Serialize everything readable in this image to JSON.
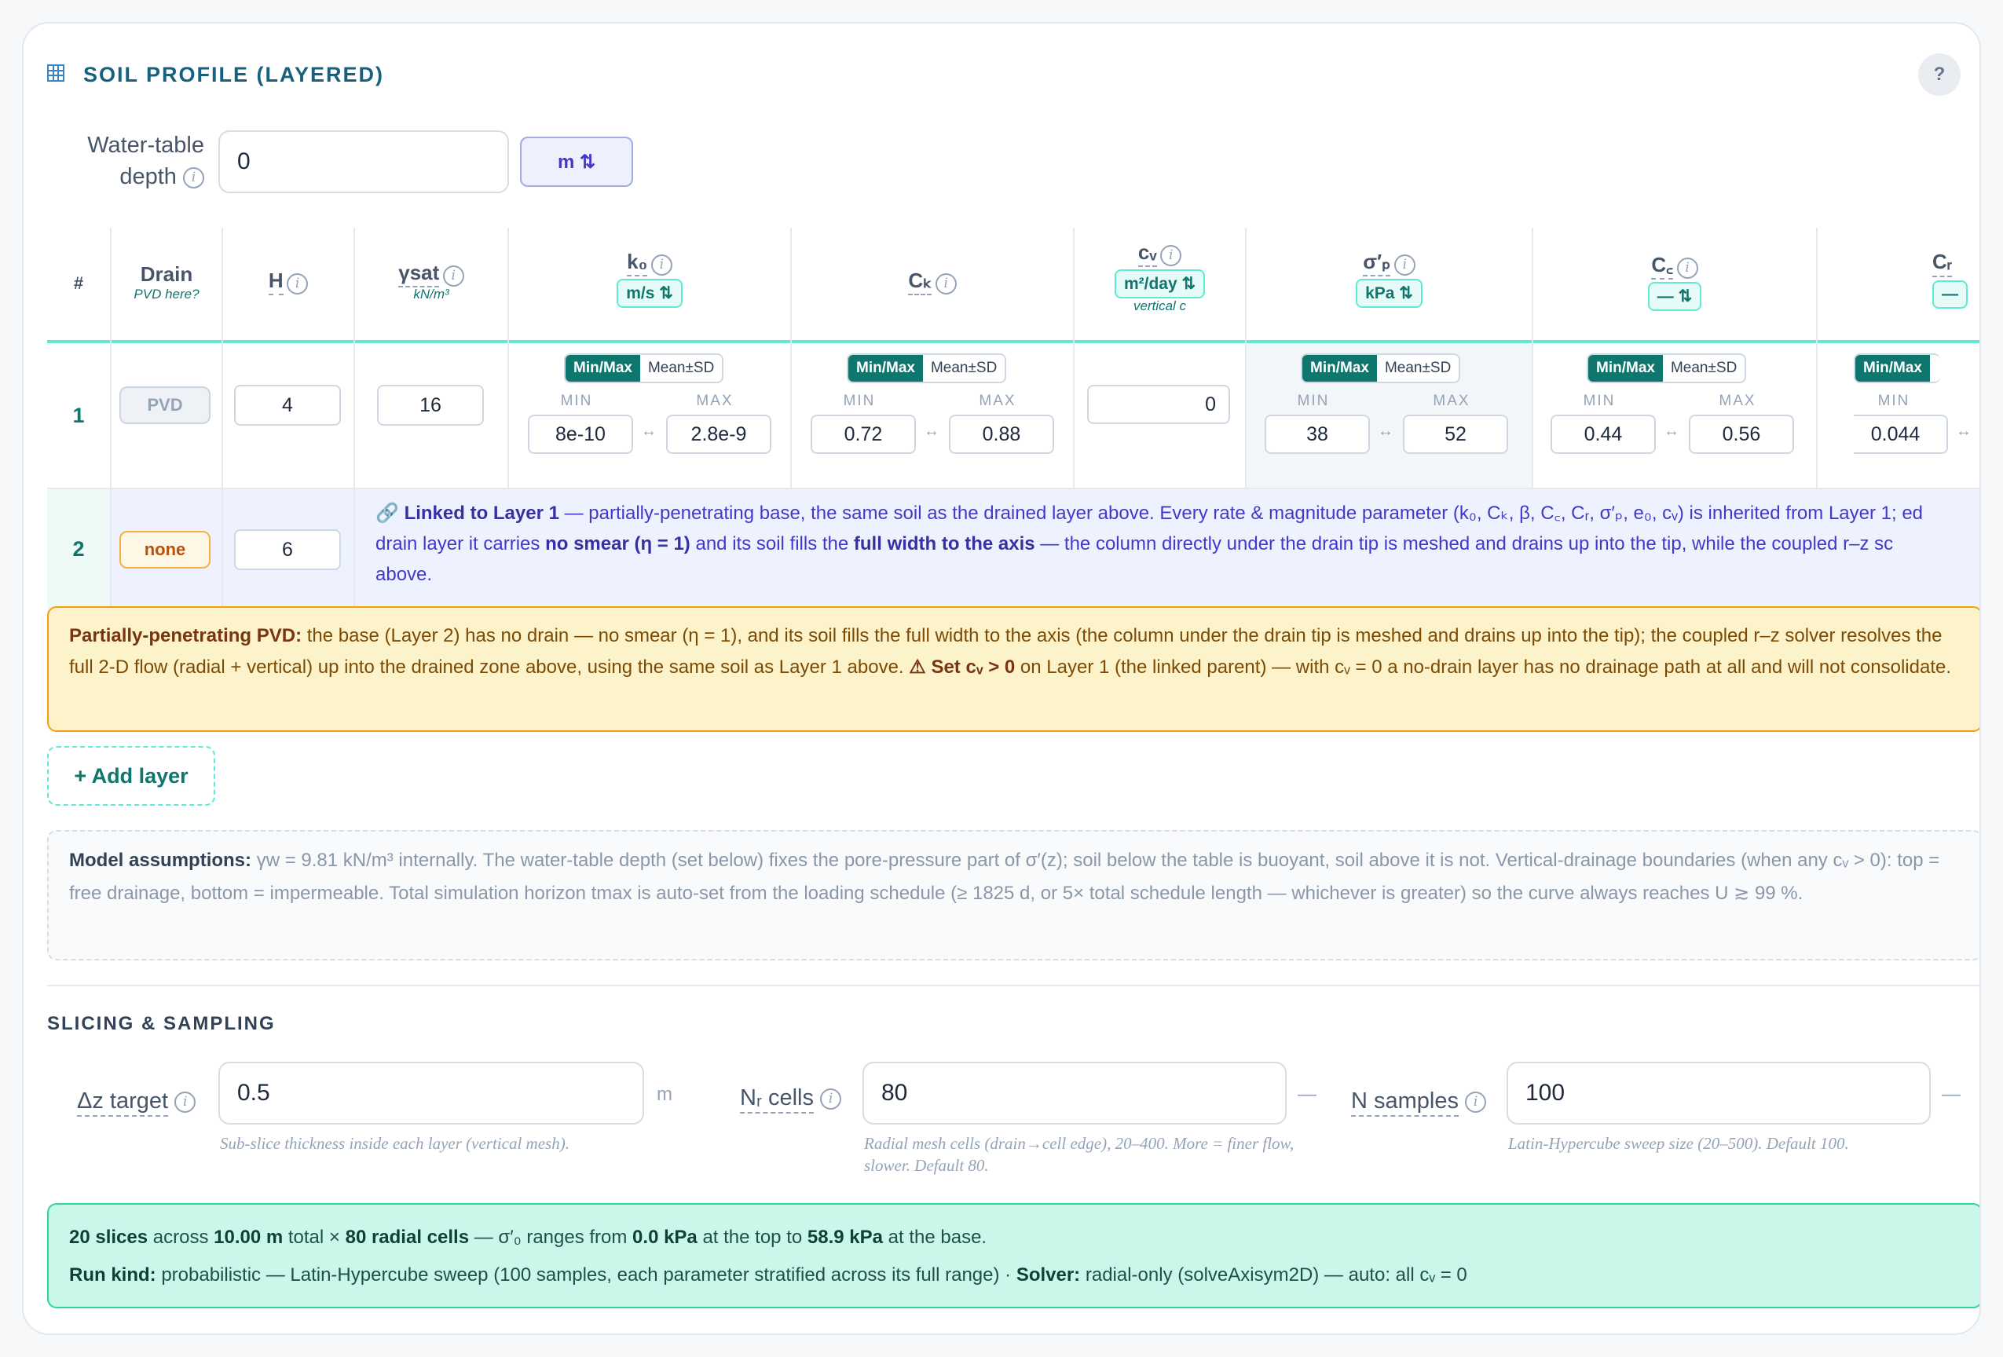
{
  "header": {
    "title": "SOIL PROFILE (LAYERED)",
    "help_label": "?"
  },
  "water_table": {
    "label_line1": "Water-table",
    "label_line2": "depth",
    "value": "0",
    "unit": "m ⇅"
  },
  "table": {
    "columns": {
      "num": "#",
      "drain": "Drain",
      "drain_sub": "PVD here?",
      "h": "H",
      "gamma": "γsat",
      "gamma_sub": "kN/m³",
      "k0": "k₀",
      "k0_unit": "m/s ⇅",
      "ck": "Cₖ",
      "cv": "cᵥ",
      "cv_unit": "m²/day ⇅",
      "cv_sub": "vertical c",
      "sigma": "σ′ₚ",
      "sigma_unit": "kPa ⇅",
      "cc": "C꜀",
      "cc_unit": "— ⇅",
      "cr": "Cᵣ",
      "cr_unit": "—"
    },
    "seg": {
      "on": "Min/Max",
      "off": "Mean±SD"
    },
    "min_label": "MIN",
    "max_label": "MAX",
    "range_arrow": "↔",
    "row1": {
      "num": "1",
      "drain": "PVD",
      "h": "4",
      "gamma": "16",
      "k0_min": "8e-10",
      "k0_max": "2.8e-9",
      "ck_min": "0.72",
      "ck_max": "0.88",
      "cv": "0",
      "sigma_min": "38",
      "sigma_max": "52",
      "cc_min": "0.44",
      "cc_max": "0.56",
      "cr_min": "0.044"
    },
    "row2": {
      "num": "2",
      "drain": "none",
      "h": "6",
      "linked_title": "Linked to Layer 1",
      "line1_rest": " — partially-penetrating base, the same soil as the drained layer above. Every rate & magnitude parameter (k₀, Cₖ, β, C꜀, Cᵣ, σ′ₚ, e₀, cᵥ) is inherited from Layer 1; ed",
      "line2_a": "drain layer it carries ",
      "line2_b": "no smear (η = 1)",
      "line2_c": " and its soil fills the ",
      "line2_d": "full width to the axis",
      "line2_e": " — the column directly under the drain tip is meshed and drains up into the tip, while the coupled r–z sc",
      "line3": "above."
    }
  },
  "warning": {
    "lead": "Partially-penetrating PVD:",
    "text1": " the base (Layer 2) has no drain — no smear (η = 1), and its soil fills the full width to the axis (the column under the drain tip is meshed and drains up into the tip); the coupled r–z solver resolves the full 2-D flow (radial + vertical) up into the drained zone above, using the same soil as Layer 1 above. ",
    "bold2": "⚠ Set cᵥ > 0",
    "text2": " on Layer 1 (the linked parent) — with cᵥ = 0 a no-drain layer has no drainage path at all and will not consolidate."
  },
  "add_layer": "+ Add layer",
  "assumptions": {
    "lead": "Model assumptions:",
    "text": " γw = 9.81 kN/m³ internally. The water-table depth (set below) fixes the pore-pressure part of σ′(z); soil below the table is buoyant, soil above it is not. Vertical-drainage boundaries (when any cᵥ > 0): top = free drainage, bottom = impermeable. Total simulation horizon tmax is auto-set from the loading schedule (≥ 1825 d, or 5× total schedule length — whichever is greater) so the curve always reaches U ≳ 99 %."
  },
  "slicing": {
    "title": "SLICING & SAMPLING",
    "dz": {
      "label": "Δz target",
      "value": "0.5",
      "unit": "m",
      "help": "Sub-slice thickness inside each layer (vertical mesh)."
    },
    "nr": {
      "label": "Nᵣ cells",
      "value": "80",
      "unit": "—",
      "help": "Radial mesh cells (drain→cell edge), 20–400. More = finer flow, slower. Default 80."
    },
    "ns": {
      "label": "N samples",
      "value": "100",
      "unit": "—",
      "help": "Latin-Hypercube sweep size (20–500). Default 100."
    }
  },
  "summary": {
    "b1": "20 slices",
    "t1": " across ",
    "b2": "10.00 m",
    "t2": " total × ",
    "b3": "80 radial cells",
    "t3": " — σ′₀ ranges from ",
    "b4": "0.0 kPa",
    "t4": " at the top to ",
    "b5": "58.9 kPa",
    "t5": " at the base.",
    "r1": "Run kind:",
    "r2": " probabilistic — Latin-Hypercube sweep (100 samples, each parameter stratified across its full range) · ",
    "r3": "Solver:",
    "r4": " radial-only (solveAxisym2D) — auto: all cᵥ = 0"
  },
  "colors": {
    "accent_teal": "#0f766e",
    "brand_blue": "#17617f",
    "warning_bg": "#fdf3cb",
    "summary_bg": "#c9f7ea",
    "linked_bg": "#eef1fe"
  }
}
